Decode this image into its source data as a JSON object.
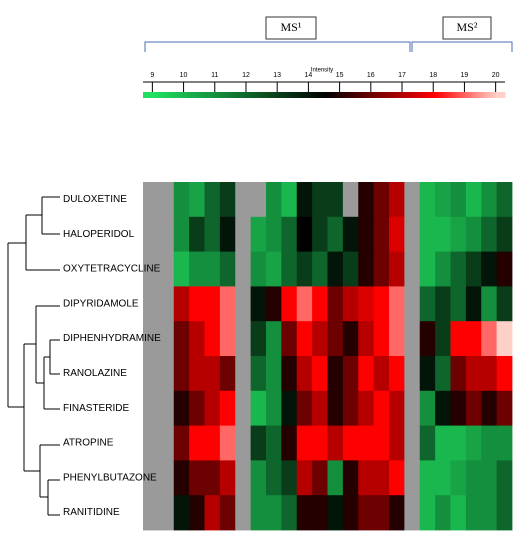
{
  "chart_data": {
    "type": "heatmap",
    "groups": [
      "MS¹",
      "MS²"
    ],
    "colorbar_title": "Intensity",
    "clim": [
      8.7,
      20.3
    ],
    "cticks": [
      9,
      10,
      11,
      12,
      13,
      14,
      15,
      16,
      17,
      18,
      19,
      20
    ],
    "color_stops": [
      [
        9,
        "#20e060"
      ],
      [
        14.5,
        "#000000"
      ],
      [
        18,
        "#ff0000"
      ],
      [
        20,
        "#ffd0c8"
      ]
    ],
    "null_color": "#9a9a9a",
    "rows": [
      "DULOXETINE",
      "HALOPERIDOL",
      "OXYTETRACYCLINE",
      "DIPYRIDAMOLE",
      "DIPHENHYDRAMINE",
      "RANOLAZINE",
      "FINASTERIDE",
      "ATROPINE",
      "PHENYLBUTAZONE",
      "RANITIDINE"
    ],
    "z": [
      [
        null,
        null,
        11,
        10.5,
        12,
        13,
        null,
        null,
        11,
        10,
        14,
        13,
        13,
        null,
        15,
        16,
        17,
        null,
        10,
        10.5,
        11,
        10,
        11,
        12
      ],
      [
        null,
        null,
        11,
        13,
        12,
        14,
        null,
        10.5,
        11,
        12,
        14.5,
        13,
        12,
        14,
        15,
        16,
        17.5,
        null,
        10,
        10,
        10.5,
        11,
        12,
        13
      ],
      [
        null,
        null,
        10,
        11,
        11,
        12,
        null,
        11,
        10.5,
        12,
        13,
        12,
        14,
        13,
        15,
        16,
        17,
        null,
        10,
        11,
        12,
        13,
        14,
        15
      ],
      [
        null,
        null,
        17,
        18,
        18,
        19,
        null,
        14,
        15,
        18,
        19,
        18,
        16,
        17,
        17.5,
        18,
        19,
        null,
        12,
        13,
        12,
        14,
        11,
        13
      ],
      [
        null,
        null,
        16,
        17,
        18,
        19,
        null,
        13,
        11,
        16,
        18,
        17,
        16,
        15,
        17,
        18,
        19,
        null,
        15,
        13,
        18,
        18,
        19,
        20
      ],
      [
        null,
        null,
        16,
        17,
        17,
        16,
        null,
        12,
        11,
        15,
        17,
        18,
        15,
        16,
        18,
        17,
        18,
        null,
        14,
        12,
        16,
        17,
        17,
        18
      ],
      [
        null,
        null,
        15,
        16,
        17,
        18,
        null,
        10,
        11,
        14,
        16,
        17,
        15,
        16,
        17,
        18,
        17,
        null,
        11,
        14,
        15,
        16,
        15,
        16
      ],
      [
        null,
        null,
        16,
        18,
        18,
        19,
        null,
        13,
        12,
        15,
        18,
        18,
        17,
        18,
        18,
        18,
        17,
        null,
        12,
        10,
        10,
        10.5,
        11,
        11
      ],
      [
        null,
        null,
        15,
        16,
        16,
        17,
        null,
        11,
        12,
        13,
        17,
        16,
        11,
        15,
        17,
        17,
        18,
        null,
        10,
        10,
        10.5,
        11,
        11,
        12
      ],
      [
        null,
        null,
        14,
        15,
        17,
        16,
        null,
        11,
        11,
        12,
        15,
        15,
        14,
        15,
        16,
        16,
        15,
        null,
        10,
        11,
        10,
        11,
        11,
        12
      ]
    ]
  }
}
